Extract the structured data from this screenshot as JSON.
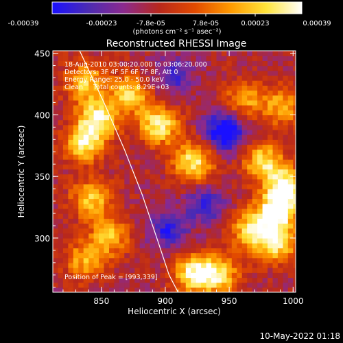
{
  "colorbar": {
    "tick_labels": [
      "-0.00039",
      "-0.00023",
      "-7.8e-05",
      "7.8e-05",
      "0.00023",
      "0.00039"
    ],
    "unit_label": "(photons cm⁻² s⁻¹ asec⁻²)",
    "colors": [
      "#1a10ff",
      "#4b2bb3",
      "#8b2a8e",
      "#b8281c",
      "#e24a00",
      "#ff9a00",
      "#ffe43a",
      "#ffffff"
    ]
  },
  "chart_data": {
    "type": "heatmap",
    "title": "Reconstructed RHESSI Image",
    "xlabel": "Heliocentric X (arcsec)",
    "ylabel": "Heliocentric Y (arcsec)",
    "xlim": [
      812,
      1002
    ],
    "ylim": [
      256,
      452
    ],
    "x_ticks": [
      850,
      900,
      950,
      1000
    ],
    "y_ticks": [
      300,
      350,
      400,
      450
    ],
    "annotations": [
      "18-Aug-2010 03:00:20.000 to 03:06:20.000",
      "Detectors: 3F 4F 5F 6F 7F 8F, Att 0",
      "Energy Range: 25.0 - 50.0 keV",
      "Clean     Total counts: 8.29E+03"
    ],
    "peak_label": "Position of Peak = [993,339]",
    "limb_points": [
      [
        833,
        452
      ],
      [
        852,
        410
      ],
      [
        868,
        372
      ],
      [
        882,
        335
      ],
      [
        894,
        298
      ],
      [
        903,
        270
      ],
      [
        910,
        256
      ]
    ],
    "bright_regions": [
      {
        "x": 845,
        "y": 395,
        "level": 0.92
      },
      {
        "x": 835,
        "y": 375,
        "level": 0.8
      },
      {
        "x": 870,
        "y": 415,
        "level": 0.75
      },
      {
        "x": 893,
        "y": 390,
        "level": 0.9
      },
      {
        "x": 920,
        "y": 360,
        "level": 0.85
      },
      {
        "x": 975,
        "y": 360,
        "level": 0.8
      },
      {
        "x": 993,
        "y": 339,
        "level": 1.0
      },
      {
        "x": 985,
        "y": 320,
        "level": 0.92
      },
      {
        "x": 965,
        "y": 305,
        "level": 0.75
      },
      {
        "x": 985,
        "y": 295,
        "level": 0.85
      },
      {
        "x": 840,
        "y": 330,
        "level": 0.7
      },
      {
        "x": 855,
        "y": 300,
        "level": 0.65
      },
      {
        "x": 835,
        "y": 280,
        "level": 0.6
      },
      {
        "x": 920,
        "y": 270,
        "level": 0.88
      },
      {
        "x": 940,
        "y": 268,
        "level": 0.78
      },
      {
        "x": 990,
        "y": 405,
        "level": 0.6
      },
      {
        "x": 960,
        "y": 410,
        "level": 0.55
      },
      {
        "x": 835,
        "y": 425,
        "level": 0.7
      }
    ],
    "dark_regions": [
      {
        "x": 945,
        "y": 385,
        "level": -0.9
      },
      {
        "x": 900,
        "y": 305,
        "level": -0.55
      },
      {
        "x": 930,
        "y": 325,
        "level": -0.5
      },
      {
        "x": 905,
        "y": 430,
        "level": -0.45
      }
    ]
  },
  "timestamp": "10-May-2022 01:18"
}
